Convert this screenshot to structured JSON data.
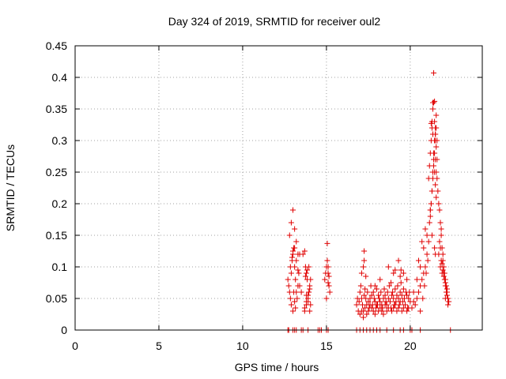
{
  "chart_data": {
    "type": "scatter",
    "title": "Day 324 of 2019, SRMTID for receiver oul2",
    "xlabel": "GPS time / hours",
    "ylabel": "SRMTID / TECUs",
    "xlim": [
      0,
      24.3
    ],
    "ylim": [
      0,
      0.45
    ],
    "xticks": [
      "0",
      "5",
      "10",
      "15",
      "20"
    ],
    "xtick_values": [
      0,
      5,
      10,
      15,
      20
    ],
    "yticks": [
      "0",
      "0.05",
      "0.1",
      "0.15",
      "0.2",
      "0.25",
      "0.3",
      "0.35",
      "0.4",
      "0.45"
    ],
    "ytick_values": [
      0,
      0.05,
      0.1,
      0.15,
      0.2,
      0.25,
      0.3,
      0.35,
      0.4,
      0.45
    ],
    "grid": true,
    "marker": "+",
    "color": "#e00000",
    "series": [
      {
        "x": [
          12.7,
          12.75,
          12.8,
          12.85,
          12.9,
          12.95,
          13.0,
          13.05,
          13.1,
          13.15,
          13.2,
          13.25,
          13.3,
          13.35,
          13.4,
          12.8,
          12.9,
          13.0,
          13.1,
          13.2,
          13.3,
          12.9,
          13.0,
          13.05,
          13.1,
          13.15,
          12.85,
          12.95,
          13.0,
          13.1,
          13.2,
          13.3,
          13.4,
          13.5,
          13.6,
          13.7,
          13.75,
          13.8,
          13.85,
          13.9,
          13.95,
          14.0,
          14.05,
          13.7,
          13.8,
          13.9,
          14.0,
          13.75,
          13.85,
          13.95,
          14.05,
          13.8,
          13.9,
          13.7,
          13.8,
          14.0,
          14.9,
          14.95,
          15.0,
          15.05,
          15.1,
          15.15,
          15.2,
          15.0,
          15.1,
          15.05,
          15.15,
          15.1,
          16.8,
          16.85,
          16.9,
          16.95,
          17.0,
          17.05,
          17.1,
          17.15,
          17.2,
          17.25,
          17.3,
          17.35,
          17.4,
          17.45,
          17.5,
          17.55,
          17.6,
          17.65,
          17.7,
          17.75,
          17.8,
          17.85,
          17.9,
          17.95,
          18.0,
          18.05,
          18.1,
          18.15,
          18.2,
          18.25,
          18.3,
          18.35,
          18.4,
          18.45,
          18.5,
          18.55,
          18.6,
          18.65,
          18.7,
          18.75,
          18.8,
          18.85,
          18.9,
          18.95,
          19.0,
          19.05,
          19.1,
          19.15,
          19.2,
          19.25,
          19.3,
          19.35,
          19.4,
          19.45,
          19.5,
          19.55,
          19.6,
          19.65,
          19.7,
          19.75,
          19.8,
          19.85,
          19.9,
          19.95,
          20.0,
          17.0,
          17.1,
          17.2,
          17.3,
          17.4,
          17.5,
          17.6,
          17.7,
          17.8,
          17.9,
          18.0,
          18.1,
          18.2,
          18.3,
          18.4,
          18.5,
          18.6,
          18.7,
          18.8,
          18.9,
          19.0,
          19.1,
          19.2,
          19.3,
          19.4,
          19.5,
          19.6,
          19.7,
          19.8,
          19.9,
          17.1,
          17.2,
          17.25,
          17.35,
          17.9,
          18.2,
          18.7,
          19.0,
          19.1,
          19.3,
          19.4,
          19.6,
          19.8,
          17.25,
          18.85,
          19.45,
          20.1,
          20.2,
          20.3,
          20.4,
          20.5,
          20.6,
          20.7,
          20.8,
          20.9,
          21.0,
          20.2,
          20.4,
          20.6,
          20.8,
          21.0,
          20.5,
          20.7,
          20.9,
          20.6,
          20.75,
          20.85,
          20.95,
          21.05,
          21.1,
          21.15,
          21.2,
          21.25,
          21.3,
          21.35,
          21.4,
          21.45,
          21.5,
          21.55,
          21.6,
          21.1,
          21.15,
          21.2,
          21.25,
          21.3,
          21.35,
          21.4,
          21.45,
          21.5,
          21.55,
          21.2,
          21.25,
          21.3,
          21.35,
          21.4,
          21.45,
          21.5,
          21.55,
          21.6,
          21.3,
          21.35,
          21.4,
          21.45,
          21.5,
          21.35,
          21.45,
          21.5,
          21.55,
          21.25,
          21.4,
          21.2,
          21.3,
          21.45,
          21.5,
          21.5,
          21.55,
          21.6,
          21.65,
          21.7,
          21.75,
          21.8,
          21.85,
          21.9,
          21.95,
          22.0,
          22.05,
          22.1,
          22.15,
          22.2,
          22.25,
          22.3,
          21.7,
          21.8,
          21.9,
          22.0,
          22.1,
          22.2,
          21.75,
          21.85,
          21.95,
          22.05,
          22.15,
          21.8,
          21.9,
          22.0,
          22.1,
          21.85,
          21.95,
          22.1,
          22.2,
          22.25,
          12.7,
          12.75,
          13.0,
          13.1,
          13.2,
          13.5,
          13.6,
          13.9,
          14.5,
          14.6,
          14.7,
          15.0,
          15.1,
          16.8,
          17.0,
          17.2,
          17.4,
          17.6,
          17.8,
          18.0,
          18.2,
          18.6,
          19.0,
          19.4,
          19.6,
          20.0,
          20.1,
          20.6,
          22.4
        ],
        "y": [
          0.08,
          0.07,
          0.06,
          0.05,
          0.09,
          0.11,
          0.12,
          0.13,
          0.1,
          0.08,
          0.06,
          0.05,
          0.07,
          0.09,
          0.12,
          0.15,
          0.17,
          0.19,
          0.16,
          0.14,
          0.12,
          0.04,
          0.03,
          0.06,
          0.045,
          0.035,
          0.1,
          0.115,
          0.125,
          0.13,
          0.11,
          0.095,
          0.07,
          0.06,
          0.12,
          0.125,
          0.1,
          0.09,
          0.08,
          0.05,
          0.06,
          0.07,
          0.04,
          0.03,
          0.045,
          0.055,
          0.065,
          0.085,
          0.095,
          0.1,
          0.08,
          0.055,
          0.045,
          0.035,
          0.04,
          0.03,
          0.08,
          0.09,
          0.1,
          0.11,
          0.09,
          0.07,
          0.06,
          0.05,
          0.1,
          0.137,
          0.085,
          0.075,
          0.04,
          0.05,
          0.03,
          0.045,
          0.06,
          0.07,
          0.05,
          0.04,
          0.03,
          0.055,
          0.065,
          0.05,
          0.04,
          0.06,
          0.045,
          0.035,
          0.05,
          0.07,
          0.055,
          0.04,
          0.06,
          0.05,
          0.045,
          0.035,
          0.065,
          0.04,
          0.055,
          0.05,
          0.045,
          0.06,
          0.04,
          0.035,
          0.05,
          0.065,
          0.055,
          0.045,
          0.04,
          0.06,
          0.05,
          0.07,
          0.045,
          0.035,
          0.055,
          0.06,
          0.05,
          0.04,
          0.065,
          0.045,
          0.055,
          0.07,
          0.05,
          0.04,
          0.06,
          0.075,
          0.055,
          0.045,
          0.065,
          0.05,
          0.04,
          0.06,
          0.055,
          0.035,
          0.05,
          0.06,
          0.045,
          0.025,
          0.03,
          0.02,
          0.035,
          0.025,
          0.03,
          0.04,
          0.035,
          0.03,
          0.025,
          0.04,
          0.03,
          0.035,
          0.03,
          0.025,
          0.04,
          0.03,
          0.035,
          0.045,
          0.03,
          0.035,
          0.04,
          0.03,
          0.035,
          0.045,
          0.03,
          0.035,
          0.04,
          0.03,
          0.035,
          0.09,
          0.1,
          0.125,
          0.085,
          0.07,
          0.08,
          0.1,
          0.09,
          0.095,
          0.11,
          0.085,
          0.09,
          0.08,
          0.11,
          0.075,
          0.095,
          0.035,
          0.045,
          0.04,
          0.05,
          0.06,
          0.07,
          0.08,
          0.09,
          0.1,
          0.12,
          0.06,
          0.08,
          0.1,
          0.13,
          0.15,
          0.11,
          0.14,
          0.16,
          0.03,
          0.05,
          0.07,
          0.09,
          0.11,
          0.14,
          0.17,
          0.19,
          0.2,
          0.22,
          0.25,
          0.27,
          0.3,
          0.31,
          0.29,
          0.27,
          0.24,
          0.26,
          0.28,
          0.3,
          0.32,
          0.31,
          0.28,
          0.25,
          0.23,
          0.21,
          0.18,
          0.2,
          0.22,
          0.24,
          0.26,
          0.28,
          0.3,
          0.32,
          0.3,
          0.33,
          0.35,
          0.36,
          0.33,
          0.31,
          0.36,
          0.362,
          0.32,
          0.34,
          0.327,
          0.407,
          0.19,
          0.15,
          0.13,
          0.12,
          0.27,
          0.25,
          0.24,
          0.22,
          0.2,
          0.19,
          0.17,
          0.15,
          0.13,
          0.11,
          0.1,
          0.09,
          0.08,
          0.07,
          0.06,
          0.05,
          0.045,
          0.12,
          0.1,
          0.09,
          0.085,
          0.075,
          0.065,
          0.14,
          0.11,
          0.095,
          0.08,
          0.06,
          0.13,
          0.105,
          0.09,
          0.07,
          0.16,
          0.12,
          0.05,
          0.055,
          0.04,
          0,
          0,
          0,
          0,
          0,
          0,
          0,
          0,
          0,
          0,
          0,
          0,
          0,
          0,
          0,
          0,
          0,
          0,
          0,
          0,
          0,
          0,
          0,
          0,
          0,
          0,
          0,
          0,
          0
        ]
      }
    ]
  }
}
